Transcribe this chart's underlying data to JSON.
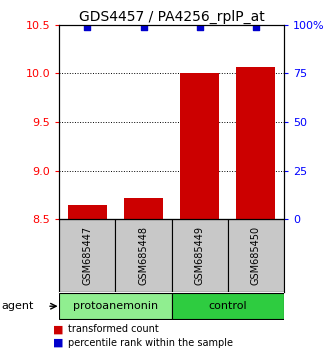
{
  "title": "GDS4457 / PA4256_rplP_at",
  "samples": [
    "GSM685447",
    "GSM685448",
    "GSM685449",
    "GSM685450"
  ],
  "bar_values": [
    8.65,
    8.72,
    10.0,
    10.07
  ],
  "percentile_values": [
    99.0,
    99.0,
    99.0,
    99.0
  ],
  "ylim_left": [
    8.5,
    10.5
  ],
  "ylim_right": [
    0,
    100
  ],
  "yticks_left": [
    8.5,
    9.0,
    9.5,
    10.0,
    10.5
  ],
  "yticks_right": [
    0,
    25,
    50,
    75,
    100
  ],
  "ytick_labels_right": [
    "0",
    "25",
    "50",
    "75",
    "100%"
  ],
  "groups": [
    {
      "label": "protoanemonin",
      "start": 0,
      "end": 2,
      "color": "#90EE90"
    },
    {
      "label": "control",
      "start": 2,
      "end": 4,
      "color": "#2ECC40"
    }
  ],
  "bar_color": "#CC0000",
  "dot_color": "#0000CC",
  "bar_width": 0.7,
  "sample_box_color": "#C8C8C8",
  "agent_label": "agent",
  "legend_items": [
    {
      "color": "#CC0000",
      "label": "transformed count"
    },
    {
      "color": "#0000CC",
      "label": "percentile rank within the sample"
    }
  ],
  "title_fontsize": 10,
  "tick_fontsize": 8,
  "sample_fontsize": 7,
  "group_fontsize": 8,
  "legend_fontsize": 7
}
